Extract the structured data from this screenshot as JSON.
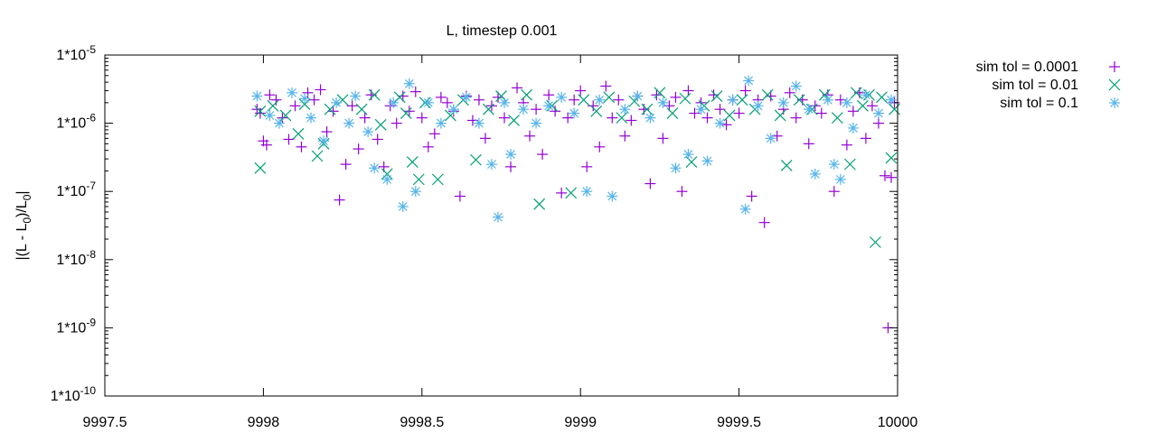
{
  "chart_data": {
    "type": "scatter",
    "title": "L, timestep 0.001",
    "xlabel": "",
    "ylabel": "|(L - L0)/L0|",
    "ylabel_parts": [
      "|(L - L",
      "0",
      ")/L",
      "0",
      "|"
    ],
    "xscale": "linear",
    "yscale": "log",
    "xlim": [
      9997.5,
      10000
    ],
    "ylim": [
      1e-10,
      1e-05
    ],
    "x_ticks": [
      "9997.5",
      "9998",
      "9998.5",
      "9999",
      "9999.5",
      "10000"
    ],
    "y_ticks": [
      "1*10-10",
      "1*10-9",
      "1*10-8",
      "1*10-7",
      "1*10-6",
      "1*10-5"
    ],
    "y_tick_bases": [
      "1*10",
      "1*10",
      "1*10",
      "1*10",
      "1*10",
      "1*10"
    ],
    "y_tick_exponents": [
      "-10",
      "-9",
      "-8",
      "-7",
      "-6",
      "-5"
    ],
    "grid": false,
    "legend_position": "outside-top-right",
    "series": [
      {
        "name": "sim tol = 0.0001",
        "marker": "plus",
        "color": "#9400d3",
        "points": [
          [
            9997.98,
            1.6e-06
          ],
          [
            9997.99,
            1.4e-06
          ],
          [
            9998.0,
            5.5e-07
          ],
          [
            9998.01,
            4.8e-07
          ],
          [
            9998.02,
            2.6e-06
          ],
          [
            9998.04,
            2.2e-06
          ],
          [
            9998.06,
            1.2e-06
          ],
          [
            9998.08,
            5.8e-07
          ],
          [
            9998.1,
            1.8e-06
          ],
          [
            9998.12,
            4.5e-07
          ],
          [
            9998.14,
            2.8e-06
          ],
          [
            9998.16,
            2.2e-06
          ],
          [
            9998.18,
            3.1e-06
          ],
          [
            9998.2,
            7.5e-07
          ],
          [
            9998.22,
            1.5e-06
          ],
          [
            9998.24,
            7.5e-08
          ],
          [
            9998.26,
            2.5e-07
          ],
          [
            9998.28,
            1.8e-06
          ],
          [
            9998.3,
            4.2e-07
          ],
          [
            9998.32,
            1.2e-06
          ],
          [
            9998.34,
            2.6e-06
          ],
          [
            9998.36,
            5.8e-07
          ],
          [
            9998.38,
            2.3e-07
          ],
          [
            9998.4,
            1.8e-06
          ],
          [
            9998.42,
            1e-06
          ],
          [
            9998.44,
            2.5e-06
          ],
          [
            9998.46,
            1.5e-06
          ],
          [
            9998.48,
            2.9e-06
          ],
          [
            9998.5,
            1.2e-06
          ],
          [
            9998.52,
            4.5e-07
          ],
          [
            9998.54,
            7e-07
          ],
          [
            9998.56,
            2.4e-06
          ],
          [
            9998.58,
            2e-06
          ],
          [
            9998.6,
            1.5e-06
          ],
          [
            9998.62,
            8.5e-08
          ],
          [
            9998.64,
            2.5e-06
          ],
          [
            9998.66,
            1.1e-06
          ],
          [
            9998.68,
            2.2e-06
          ],
          [
            9998.7,
            6e-07
          ],
          [
            9998.72,
            1.8e-06
          ],
          [
            9998.74,
            2.4e-06
          ],
          [
            9998.76,
            1.2e-06
          ],
          [
            9998.78,
            2.3e-07
          ],
          [
            9998.8,
            3.3e-06
          ],
          [
            9998.82,
            2e-06
          ],
          [
            9998.84,
            6.5e-07
          ],
          [
            9998.86,
            1.6e-06
          ],
          [
            9998.88,
            3.5e-07
          ],
          [
            9998.9,
            2.6e-06
          ],
          [
            9998.92,
            1.5e-06
          ],
          [
            9998.94,
            9.5e-08
          ],
          [
            9998.96,
            1.2e-06
          ],
          [
            9998.98,
            2.2e-06
          ],
          [
            9999.0,
            3e-06
          ],
          [
            9999.02,
            2.3e-07
          ],
          [
            9999.04,
            1.8e-06
          ],
          [
            9999.06,
            4.5e-07
          ],
          [
            9999.08,
            3.5e-06
          ],
          [
            9999.1,
            1.2e-06
          ],
          [
            9999.12,
            2.2e-06
          ],
          [
            9999.14,
            6.5e-07
          ],
          [
            9999.16,
            1.1e-06
          ],
          [
            9999.18,
            2.5e-06
          ],
          [
            9999.2,
            1.6e-06
          ],
          [
            9999.22,
            1.3e-07
          ],
          [
            9999.24,
            2.6e-06
          ],
          [
            9999.26,
            6e-07
          ],
          [
            9999.28,
            1.8e-06
          ],
          [
            9999.3,
            2.4e-06
          ],
          [
            9999.32,
            1e-07
          ],
          [
            9999.34,
            3e-06
          ],
          [
            9999.36,
            1.4e-06
          ],
          [
            9999.38,
            2e-06
          ],
          [
            9999.4,
            1.2e-06
          ],
          [
            9999.42,
            2.6e-06
          ],
          [
            9999.44,
            1.6e-06
          ],
          [
            9999.46,
            9.5e-07
          ],
          [
            9999.48,
            2.2e-06
          ],
          [
            9999.5,
            1.4e-06
          ],
          [
            9999.52,
            3e-06
          ],
          [
            9999.54,
            8.5e-08
          ],
          [
            9999.56,
            2.2e-06
          ],
          [
            9999.58,
            3.5e-08
          ],
          [
            9999.6,
            2.5e-06
          ],
          [
            9999.62,
            6.5e-07
          ],
          [
            9999.64,
            1.6e-06
          ],
          [
            9999.66,
            2.8e-06
          ],
          [
            9999.68,
            1.2e-06
          ],
          [
            9999.7,
            2.2e-06
          ],
          [
            9999.72,
            5e-07
          ],
          [
            9999.74,
            1.8e-06
          ],
          [
            9999.76,
            1.4e-06
          ],
          [
            9999.78,
            2.6e-06
          ],
          [
            9999.8,
            1e-07
          ],
          [
            9999.82,
            2.2e-06
          ],
          [
            9999.84,
            4.8e-07
          ],
          [
            9999.86,
            1.5e-06
          ],
          [
            9999.88,
            2.8e-06
          ],
          [
            9999.9,
            6e-07
          ],
          [
            9999.92,
            1.8e-06
          ],
          [
            9999.94,
            1e-06
          ],
          [
            9999.96,
            1.7e-07
          ],
          [
            9999.97,
            1e-09
          ],
          [
            9999.98,
            1.6e-07
          ],
          [
            9999.99,
            2e-06
          ]
        ]
      },
      {
        "name": "sim tol = 0.01",
        "marker": "cross",
        "color": "#009e73",
        "points": [
          [
            9997.99,
            1.5e-06
          ],
          [
            9997.99,
            2.2e-07
          ],
          [
            9998.03,
            1.8e-06
          ],
          [
            9998.07,
            1.3e-06
          ],
          [
            9998.11,
            7e-07
          ],
          [
            9998.13,
            1.9e-06
          ],
          [
            9998.17,
            3.3e-07
          ],
          [
            9998.19,
            5e-07
          ],
          [
            9998.21,
            1.6e-06
          ],
          [
            9998.25,
            2.2e-06
          ],
          [
            9998.31,
            1.6e-06
          ],
          [
            9998.35,
            2.6e-06
          ],
          [
            9998.37,
            9.5e-07
          ],
          [
            9998.39,
            1.8e-07
          ],
          [
            9998.43,
            2.4e-06
          ],
          [
            9998.45,
            1.4e-06
          ],
          [
            9998.47,
            2.7e-07
          ],
          [
            9998.49,
            1.5e-07
          ],
          [
            9998.51,
            2e-06
          ],
          [
            9998.55,
            1.5e-07
          ],
          [
            9998.59,
            1.3e-06
          ],
          [
            9998.63,
            2.2e-06
          ],
          [
            9998.67,
            2.9e-07
          ],
          [
            9998.71,
            1.6e-06
          ],
          [
            9998.75,
            2.5e-06
          ],
          [
            9998.79,
            1.1e-06
          ],
          [
            9998.83,
            2.6e-06
          ],
          [
            9998.87,
            6.5e-08
          ],
          [
            9998.91,
            1.8e-06
          ],
          [
            9998.97,
            9.5e-08
          ],
          [
            9999.01,
            2.2e-06
          ],
          [
            9999.05,
            1.5e-06
          ],
          [
            9999.09,
            2.4e-06
          ],
          [
            9999.13,
            1.2e-06
          ],
          [
            9999.17,
            2.1e-06
          ],
          [
            9999.21,
            1.6e-06
          ],
          [
            9999.25,
            2.8e-06
          ],
          [
            9999.29,
            1.4e-06
          ],
          [
            9999.33,
            2.3e-06
          ],
          [
            9999.35,
            2.7e-07
          ],
          [
            9999.39,
            1.8e-06
          ],
          [
            9999.43,
            2.5e-06
          ],
          [
            9999.47,
            1.3e-06
          ],
          [
            9999.51,
            2.2e-06
          ],
          [
            9999.55,
            1.6e-06
          ],
          [
            9999.59,
            2.6e-06
          ],
          [
            9999.63,
            1.3e-06
          ],
          [
            9999.65,
            2.4e-07
          ],
          [
            9999.69,
            2.2e-06
          ],
          [
            9999.73,
            1.6e-06
          ],
          [
            9999.77,
            2.6e-06
          ],
          [
            9999.81,
            1.2e-06
          ],
          [
            9999.85,
            2.5e-07
          ],
          [
            9999.87,
            2.8e-06
          ],
          [
            9999.89,
            1.8e-06
          ],
          [
            9999.91,
            2.6e-06
          ],
          [
            9999.93,
            1.8e-08
          ],
          [
            9999.95,
            2.4e-06
          ],
          [
            9999.98,
            3.1e-07
          ],
          [
            9999.99,
            1.6e-06
          ]
        ]
      },
      {
        "name": "sim tol = 0.1",
        "marker": "star",
        "color": "#56b4e9",
        "points": [
          [
            9997.98,
            2.5e-06
          ],
          [
            9998.02,
            1.3e-06
          ],
          [
            9998.05,
            1e-06
          ],
          [
            9998.09,
            2.8e-06
          ],
          [
            9998.13,
            2.3e-06
          ],
          [
            9998.15,
            1.2e-06
          ],
          [
            9998.19,
            5.5e-07
          ],
          [
            9998.23,
            2e-06
          ],
          [
            9998.27,
            1e-06
          ],
          [
            9998.29,
            2.5e-06
          ],
          [
            9998.33,
            7.5e-07
          ],
          [
            9998.35,
            2.2e-07
          ],
          [
            9998.39,
            1.5e-07
          ],
          [
            9998.41,
            2e-06
          ],
          [
            9998.44,
            6e-08
          ],
          [
            9998.46,
            3.8e-06
          ],
          [
            9998.48,
            1e-07
          ],
          [
            9998.52,
            2e-06
          ],
          [
            9998.56,
            1e-06
          ],
          [
            9998.6,
            1.6e-06
          ],
          [
            9998.64,
            2.4e-06
          ],
          [
            9998.68,
            1e-06
          ],
          [
            9998.72,
            2.5e-07
          ],
          [
            9998.74,
            4.2e-08
          ],
          [
            9998.76,
            2e-06
          ],
          [
            9998.78,
            3.5e-07
          ],
          [
            9998.82,
            1.6e-06
          ],
          [
            9998.86,
            1e-06
          ],
          [
            9998.9,
            1.8e-06
          ],
          [
            9998.94,
            2.4e-06
          ],
          [
            9998.98,
            1.4e-06
          ],
          [
            9999.02,
            1e-07
          ],
          [
            9999.06,
            2.2e-06
          ],
          [
            9999.1,
            8.5e-08
          ],
          [
            9999.14,
            1.6e-06
          ],
          [
            9999.18,
            2.5e-06
          ],
          [
            9999.22,
            1.2e-06
          ],
          [
            9999.26,
            2e-06
          ],
          [
            9999.3,
            2.2e-07
          ],
          [
            9999.34,
            3.5e-07
          ],
          [
            9999.38,
            1.6e-06
          ],
          [
            9999.4,
            2.8e-07
          ],
          [
            9999.44,
            1e-06
          ],
          [
            9999.48,
            2.2e-06
          ],
          [
            9999.52,
            5.5e-08
          ],
          [
            9999.53,
            4.2e-06
          ],
          [
            9999.56,
            1.8e-06
          ],
          [
            9999.6,
            6e-07
          ],
          [
            9999.64,
            2e-06
          ],
          [
            9999.68,
            3.5e-06
          ],
          [
            9999.72,
            1.6e-06
          ],
          [
            9999.74,
            1.8e-07
          ],
          [
            9999.78,
            2.2e-06
          ],
          [
            9999.8,
            2.5e-07
          ],
          [
            9999.82,
            1.5e-07
          ],
          [
            9999.84,
            2e-06
          ],
          [
            9999.86,
            8.5e-07
          ],
          [
            9999.9,
            2.6e-06
          ],
          [
            9999.94,
            1.4e-06
          ],
          [
            9999.98,
            2.2e-06
          ]
        ]
      }
    ]
  }
}
